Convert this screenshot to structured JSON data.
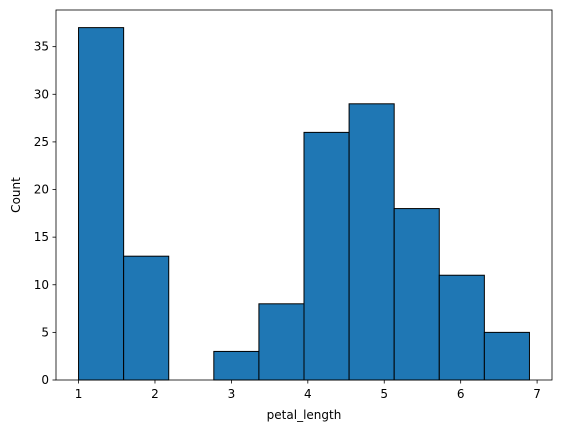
{
  "chart_data": {
    "type": "bar",
    "subtype": "histogram",
    "xlabel": "petal_length",
    "ylabel": "Count",
    "bins": [
      {
        "start": 1.0,
        "end": 1.59,
        "count": 37
      },
      {
        "start": 1.59,
        "end": 2.18,
        "count": 13
      },
      {
        "start": 2.18,
        "end": 2.77,
        "count": 0
      },
      {
        "start": 2.77,
        "end": 3.36,
        "count": 3
      },
      {
        "start": 3.36,
        "end": 3.95,
        "count": 8
      },
      {
        "start": 3.95,
        "end": 4.54,
        "count": 26
      },
      {
        "start": 4.54,
        "end": 5.13,
        "count": 29
      },
      {
        "start": 5.13,
        "end": 5.72,
        "count": 18
      },
      {
        "start": 5.72,
        "end": 6.31,
        "count": 11
      },
      {
        "start": 6.31,
        "end": 6.9,
        "count": 5
      }
    ],
    "xlim": [
      0.705,
      7.195
    ],
    "ylim": [
      0,
      38.85
    ],
    "xticks": [
      1,
      2,
      3,
      4,
      5,
      6,
      7
    ],
    "yticks": [
      0,
      5,
      10,
      15,
      20,
      25,
      30,
      35
    ],
    "bar_color": "#1f77b4",
    "edge_color": "#000000",
    "grid": false,
    "legend": "none"
  }
}
